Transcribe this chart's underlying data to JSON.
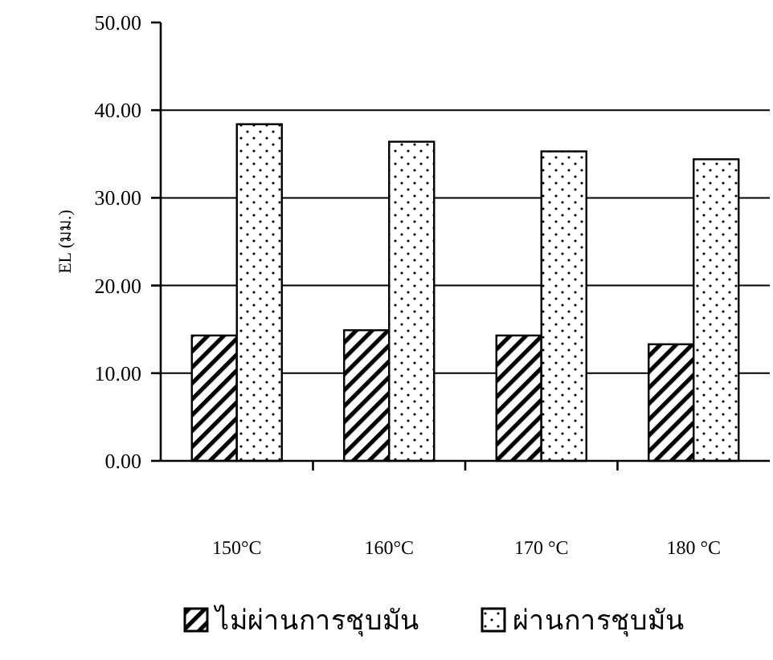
{
  "chart_data": {
    "type": "bar",
    "ylabel": "EL (มม.)",
    "categories": [
      "150°C",
      "160°C",
      "170 °C",
      "180 °C"
    ],
    "series": [
      {
        "name": "ไม่ผ่านการชุบมัน",
        "color": "#000000",
        "values": [
          14.3,
          14.9,
          14.3,
          13.3
        ]
      },
      {
        "name": "ผ่านการชุบมัน",
        "color": "#000000",
        "values": [
          38.4,
          36.4,
          35.3,
          34.4
        ]
      }
    ],
    "ylim": [
      0,
      50
    ],
    "yticks": [
      {
        "value": 0,
        "label": "0.00"
      },
      {
        "value": 10,
        "label": "10.00"
      },
      {
        "value": 20,
        "label": "20.00"
      },
      {
        "value": 30,
        "label": "30.00"
      },
      {
        "value": 40,
        "label": "40.00"
      },
      {
        "value": 50,
        "label": "50.00"
      }
    ],
    "grid": "y",
    "legend": "bottom"
  }
}
